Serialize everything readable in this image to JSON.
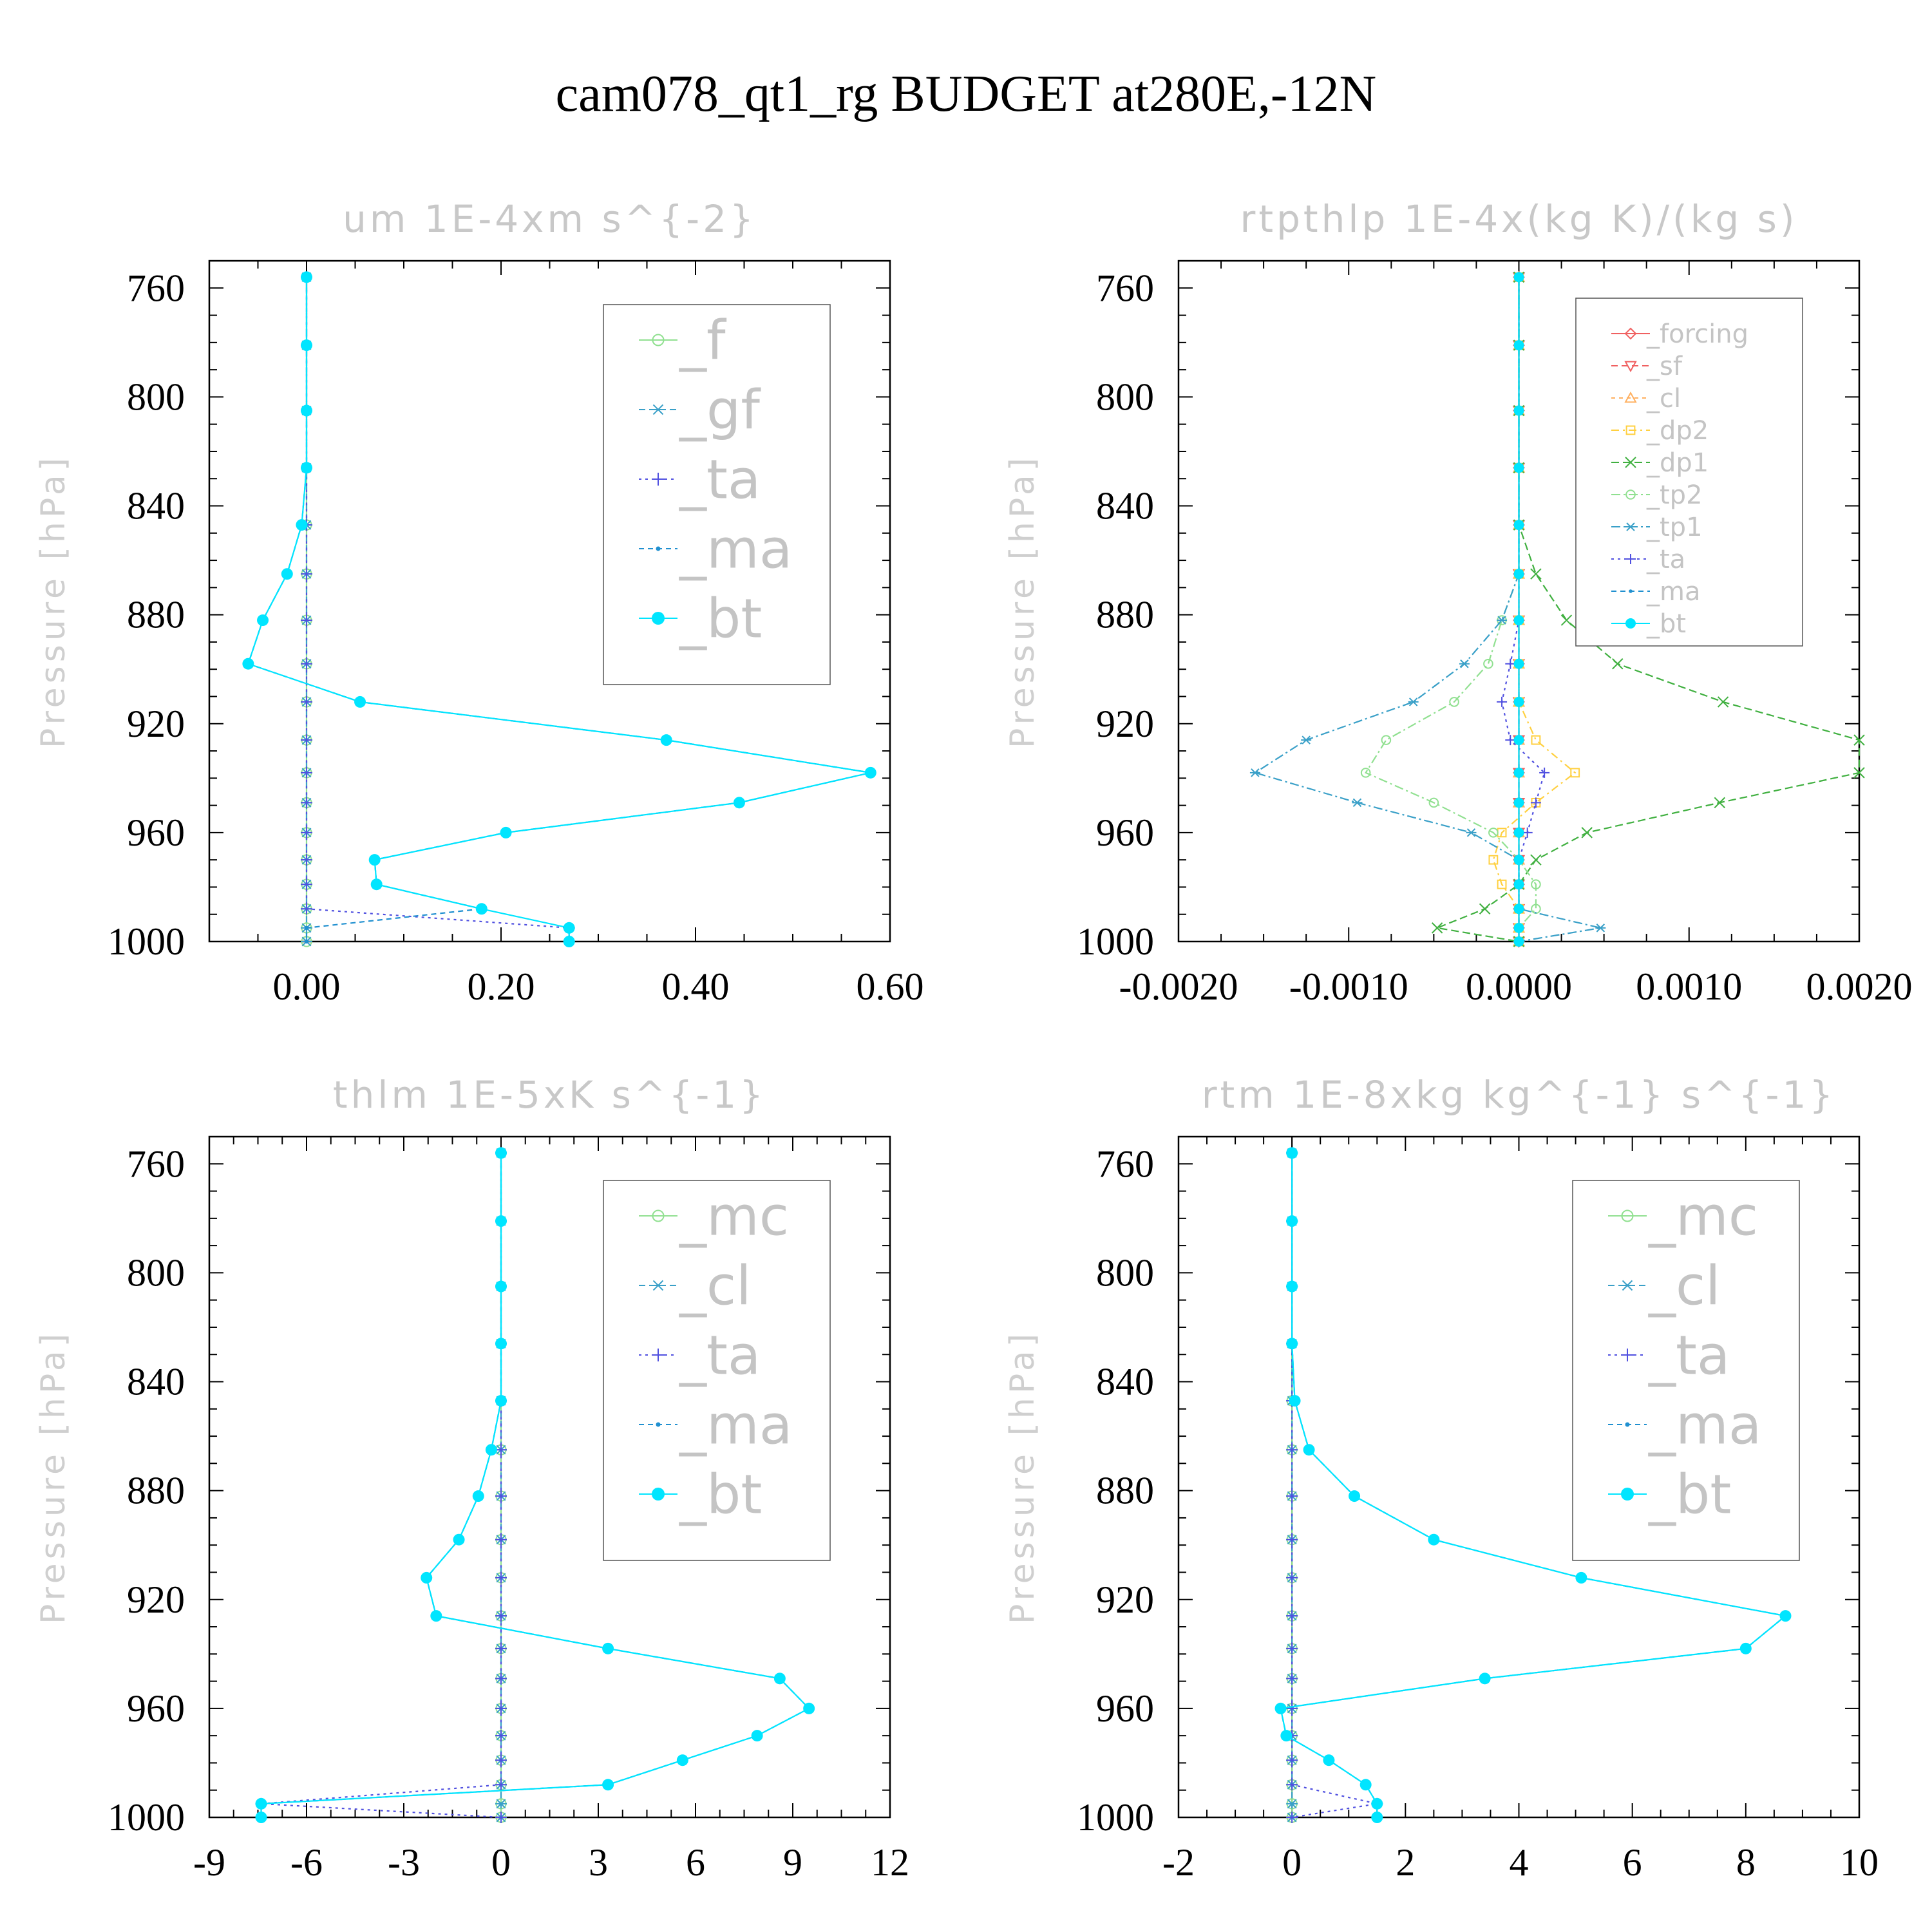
{
  "figure": {
    "title": "cam078_qt1_rg  BUDGET at280E,-12N"
  },
  "chart_data": [
    {
      "id": "um",
      "type": "line",
      "title": "um   1E-4xm s^{-2}",
      "ylabel": "Pressure [hPa]",
      "ylim": [
        1000,
        750
      ],
      "yticks": [
        760,
        800,
        840,
        880,
        920,
        960,
        1000
      ],
      "xlim": [
        -0.1,
        0.6
      ],
      "xticks": [
        "0.00",
        "0.20",
        "0.40",
        "0.60"
      ],
      "xtick_values": [
        0,
        0.2,
        0.4,
        0.6
      ],
      "legend": {
        "position": "top-right",
        "scale": "large"
      },
      "y": [
        756,
        781,
        805,
        826,
        847,
        865,
        882,
        898,
        912,
        926,
        938,
        949,
        960,
        970,
        979,
        988,
        995,
        1000
      ],
      "series": [
        {
          "name": "_f",
          "marker": "circle-open",
          "color": "#90e090",
          "dash": "",
          "values": [
            0,
            0,
            0,
            0,
            0,
            0,
            0,
            0,
            0,
            0,
            0,
            0,
            0,
            0,
            0,
            0,
            0,
            0
          ]
        },
        {
          "name": "_gf",
          "marker": "asterisk",
          "color": "#3aa0c8",
          "dash": "10,6",
          "values": [
            0,
            0,
            0,
            0,
            0,
            0,
            0,
            0,
            0,
            0,
            0,
            0,
            0,
            0,
            0,
            0,
            0,
            0
          ]
        },
        {
          "name": "_ta",
          "marker": "plus",
          "color": "#5050e0",
          "dash": "4,6",
          "values": [
            0,
            0,
            0,
            0,
            0,
            0,
            0,
            0,
            0,
            0,
            0,
            0,
            0,
            0,
            0,
            0,
            0.27,
            0.27
          ]
        },
        {
          "name": "_ma",
          "marker": "dot",
          "color": "#2090d0",
          "dash": "8,6",
          "values": [
            0,
            0,
            0,
            0,
            -0.005,
            -0.02,
            -0.045,
            -0.06,
            0.055,
            0.37,
            0.58,
            0.445,
            0.205,
            0.07,
            0.072,
            0.18,
            0,
            0
          ]
        },
        {
          "name": "_bt",
          "marker": "filled-circle",
          "color": "#00e5ff",
          "dash": "",
          "values": [
            0,
            0,
            0,
            0,
            -0.005,
            -0.02,
            -0.045,
            -0.06,
            0.055,
            0.37,
            0.58,
            0.445,
            0.205,
            0.07,
            0.072,
            0.18,
            0.27,
            0.27
          ]
        }
      ]
    },
    {
      "id": "rtpthlp",
      "type": "line",
      "title": "rtpthlp   1E-4x(kg K)/(kg s)",
      "ylabel": "Pressure [hPa]",
      "ylim": [
        1000,
        750
      ],
      "yticks": [
        760,
        800,
        840,
        880,
        920,
        960,
        1000
      ],
      "xlim": [
        -0.002,
        0.002
      ],
      "xticks": [
        "-0.0020",
        "-0.0010",
        "0.0000",
        "0.0010",
        "0.0020"
      ],
      "xtick_values": [
        -0.002,
        -0.001,
        0,
        0.001,
        0.002
      ],
      "legend": {
        "position": "top-right",
        "scale": "small"
      },
      "y": [
        756,
        781,
        805,
        826,
        847,
        865,
        882,
        898,
        912,
        926,
        938,
        949,
        960,
        970,
        979,
        988,
        995,
        1000
      ],
      "series": [
        {
          "name": "_forcing",
          "marker": "diamond-open",
          "color": "#f06060",
          "dash": "",
          "values": [
            0,
            0,
            0,
            0,
            0,
            0,
            0,
            0,
            0,
            0,
            0,
            0,
            0,
            0,
            0,
            0,
            0,
            0
          ]
        },
        {
          "name": "_sf",
          "marker": "triangle-down",
          "color": "#f06060",
          "dash": "10,6",
          "values": [
            0,
            0,
            0,
            0,
            0,
            0,
            0,
            0,
            0,
            0,
            0,
            0,
            0,
            0,
            0,
            0,
            0,
            0
          ]
        },
        {
          "name": "_cl",
          "marker": "triangle-up",
          "color": "#ffb060",
          "dash": "6,6",
          "values": [
            0,
            0,
            0,
            0,
            0,
            0,
            0,
            0,
            0,
            0,
            0,
            0,
            0,
            0,
            0,
            0,
            0,
            0
          ]
        },
        {
          "name": "_dp2",
          "marker": "square-open",
          "color": "#ffd040",
          "dash": "12,6,3,6",
          "values": [
            0,
            0,
            0,
            0,
            0,
            0,
            0,
            0,
            0,
            0.0001,
            0.00033,
            0.0001,
            -0.0001,
            -0.00015,
            -0.0001,
            0,
            0,
            0
          ]
        },
        {
          "name": "_dp1",
          "marker": "x",
          "color": "#40b040",
          "dash": "12,6",
          "values": [
            0,
            0,
            0,
            0,
            0,
            0.0001,
            0.00028,
            0.00058,
            0.0012,
            0.002,
            0.002,
            0.00118,
            0.0004,
            0.0001,
            0,
            -0.0002,
            -0.00048,
            0
          ]
        },
        {
          "name": "_tp2",
          "marker": "circle-open",
          "color": "#90e090",
          "dash": "14,5,3,5",
          "values": [
            0,
            0,
            0,
            0,
            0,
            0,
            -0.0001,
            -0.00018,
            -0.00038,
            -0.00078,
            -0.0009,
            -0.0005,
            -0.00015,
            0,
            0.0001,
            0.0001,
            0,
            0
          ]
        },
        {
          "name": "_tp1",
          "marker": "asterisk",
          "color": "#3aa0c8",
          "dash": "14,5,3,5",
          "values": [
            0,
            0,
            0,
            0,
            0,
            0,
            -0.0001,
            -0.00032,
            -0.00062,
            -0.00125,
            -0.00155,
            -0.00095,
            -0.00028,
            0,
            0,
            0,
            0.00048,
            0
          ]
        },
        {
          "name": "_ta",
          "marker": "plus",
          "color": "#5050e0",
          "dash": "4,6",
          "values": [
            0,
            0,
            0,
            0,
            0,
            0,
            0,
            -5e-05,
            -0.0001,
            -5e-05,
            0.00015,
            0.0001,
            5e-05,
            0,
            0,
            0,
            0,
            0
          ]
        },
        {
          "name": "_ma",
          "marker": "dot",
          "color": "#2090d0",
          "dash": "8,6",
          "values": [
            0,
            0,
            0,
            0,
            0,
            0,
            0,
            0,
            0,
            0,
            0,
            0,
            0,
            0,
            0,
            0,
            0,
            0
          ]
        },
        {
          "name": "_bt",
          "marker": "filled-circle",
          "color": "#00e5ff",
          "dash": "",
          "values": [
            0,
            0,
            0,
            0,
            0,
            0,
            0,
            0,
            0,
            0,
            0,
            0,
            0,
            0,
            0,
            0,
            0,
            0
          ]
        }
      ]
    },
    {
      "id": "thlm",
      "type": "line",
      "title": "thlm   1E-5xK s^{-1}",
      "ylabel": "Pressure [hPa]",
      "ylim": [
        1000,
        750
      ],
      "yticks": [
        760,
        800,
        840,
        880,
        920,
        960,
        1000
      ],
      "xlim": [
        -9,
        12
      ],
      "xticks": [
        "-9",
        "-6",
        "-3",
        "0",
        "3",
        "6",
        "9",
        "12"
      ],
      "xtick_values": [
        -9,
        -6,
        -3,
        0,
        3,
        6,
        9,
        12
      ],
      "legend": {
        "position": "top-right",
        "scale": "large"
      },
      "y": [
        756,
        781,
        805,
        826,
        847,
        865,
        882,
        898,
        912,
        926,
        938,
        949,
        960,
        970,
        979,
        988,
        995,
        1000
      ],
      "series": [
        {
          "name": "_mc",
          "marker": "circle-open",
          "color": "#90e090",
          "dash": "",
          "values": [
            0,
            0,
            0,
            0,
            0,
            0,
            0,
            0,
            0,
            0,
            0,
            0,
            0,
            0,
            0,
            0,
            0,
            0
          ]
        },
        {
          "name": "_cl",
          "marker": "asterisk",
          "color": "#3aa0c8",
          "dash": "10,6",
          "values": [
            0,
            0,
            0,
            0,
            0,
            0,
            0,
            0,
            0,
            0,
            0,
            0,
            0,
            0,
            0,
            0,
            0,
            0
          ]
        },
        {
          "name": "_ta",
          "marker": "plus",
          "color": "#5050e0",
          "dash": "4,6",
          "values": [
            0,
            0,
            0,
            0,
            0,
            0,
            0,
            0,
            0,
            0,
            0,
            0,
            0,
            0,
            0,
            0,
            -7.4,
            0
          ]
        },
        {
          "name": "_ma",
          "marker": "dot",
          "color": "#2090d0",
          "dash": "8,6",
          "values": [
            0,
            0,
            0,
            0,
            0,
            -0.3,
            -0.7,
            -1.3,
            -2.3,
            -2.0,
            3.3,
            8.6,
            9.5,
            7.9,
            5.6,
            3.3,
            -7.4,
            -7.4
          ]
        },
        {
          "name": "_bt",
          "marker": "filled-circle",
          "color": "#00e5ff",
          "dash": "",
          "values": [
            0,
            0,
            0,
            0,
            0,
            -0.3,
            -0.7,
            -1.3,
            -2.3,
            -2.0,
            3.3,
            8.6,
            9.5,
            7.9,
            5.6,
            3.3,
            -7.4,
            -7.4
          ]
        }
      ]
    },
    {
      "id": "rtm",
      "type": "line",
      "title": "rtm   1E-8xkg kg^{-1} s^{-1}",
      "ylabel": "Pressure [hPa]",
      "ylim": [
        1000,
        750
      ],
      "yticks": [
        760,
        800,
        840,
        880,
        920,
        960,
        1000
      ],
      "xlim": [
        -2,
        10
      ],
      "xticks": [
        "-2",
        "0",
        "2",
        "4",
        "6",
        "8",
        "10"
      ],
      "xtick_values": [
        -2,
        0,
        2,
        4,
        6,
        8,
        10
      ],
      "legend": {
        "position": "top-right",
        "scale": "large"
      },
      "y": [
        756,
        781,
        805,
        826,
        847,
        865,
        882,
        898,
        912,
        926,
        938,
        949,
        960,
        970,
        979,
        988,
        995,
        1000
      ],
      "series": [
        {
          "name": "_mc",
          "marker": "circle-open",
          "color": "#90e090",
          "dash": "",
          "values": [
            0,
            0,
            0,
            0,
            0,
            0,
            0,
            0,
            0,
            0,
            0,
            0,
            0,
            0,
            0,
            0,
            0,
            0
          ]
        },
        {
          "name": "_cl",
          "marker": "asterisk",
          "color": "#3aa0c8",
          "dash": "10,6",
          "values": [
            0,
            0,
            0,
            0,
            0,
            0,
            0,
            0,
            0,
            0,
            0,
            0,
            0,
            0,
            0,
            0,
            0,
            0
          ]
        },
        {
          "name": "_ta",
          "marker": "plus",
          "color": "#5050e0",
          "dash": "4,6",
          "values": [
            0,
            0,
            0,
            0,
            0,
            0,
            0,
            0,
            0,
            0,
            0,
            0,
            0,
            0,
            0,
            0,
            1.5,
            0
          ]
        },
        {
          "name": "_ma",
          "marker": "dot",
          "color": "#2090d0",
          "dash": "8,6",
          "values": [
            0,
            0,
            0,
            0,
            0.05,
            0.3,
            1.1,
            2.5,
            5.1,
            8.7,
            8.0,
            3.4,
            -0.2,
            -0.1,
            0.65,
            1.3,
            1.5,
            1.5
          ]
        },
        {
          "name": "_bt",
          "marker": "filled-circle",
          "color": "#00e5ff",
          "dash": "",
          "values": [
            0,
            0,
            0,
            0,
            0.05,
            0.3,
            1.1,
            2.5,
            5.1,
            8.7,
            8.0,
            3.4,
            -0.2,
            -0.1,
            0.65,
            1.3,
            1.5,
            1.5
          ]
        }
      ]
    }
  ]
}
